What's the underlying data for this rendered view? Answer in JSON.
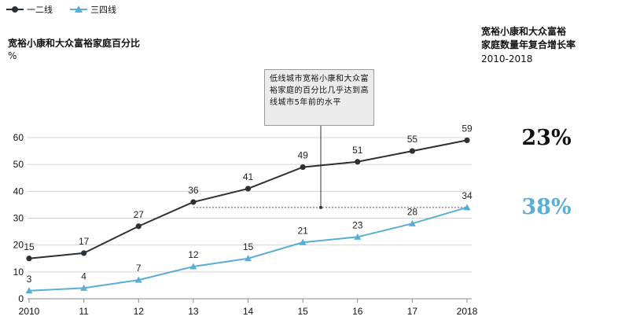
{
  "legend": [
    {
      "label": "一二线",
      "color": "#2b3135",
      "marker": "circle"
    },
    {
      "label": "三四线",
      "color": "#5aaed6",
      "marker": "triangle"
    }
  ],
  "cagr": {
    "title_line1": "宽裕小康和大众富裕",
    "title_line2": "家庭数量年复合增长率",
    "range": "2010-2018",
    "values": [
      {
        "series": "一二线",
        "value": "23%",
        "color": "#111111"
      },
      {
        "series": "三四线",
        "value": "38%",
        "color": "#5aaed6"
      }
    ]
  },
  "annotation": {
    "text": "低线城市宽裕小康和大众富裕家庭的百分比几乎达到高线城市5年前的水平"
  },
  "chart_data": {
    "type": "line",
    "title": "宽裕小康和大众富裕家庭百分比",
    "ylabel": "%",
    "xlabel": "",
    "categories": [
      "2010",
      "11",
      "12",
      "13",
      "14",
      "15",
      "16",
      "17",
      "2018"
    ],
    "series": [
      {
        "name": "一二线",
        "values": [
          15,
          17,
          27,
          36,
          41,
          49,
          51,
          55,
          59
        ],
        "color": "#2b3135",
        "marker": "circle"
      },
      {
        "name": "三四线",
        "values": [
          3,
          4,
          7,
          12,
          15,
          21,
          23,
          28,
          34
        ],
        "color": "#5aaed6",
        "marker": "triangle"
      }
    ],
    "yticks": [
      0,
      10,
      20,
      30,
      40,
      50,
      60
    ],
    "ylim": [
      0,
      60
    ],
    "grid": true,
    "legend_position": "top-left",
    "reference_line": {
      "value": 34,
      "style": "dashed"
    }
  }
}
